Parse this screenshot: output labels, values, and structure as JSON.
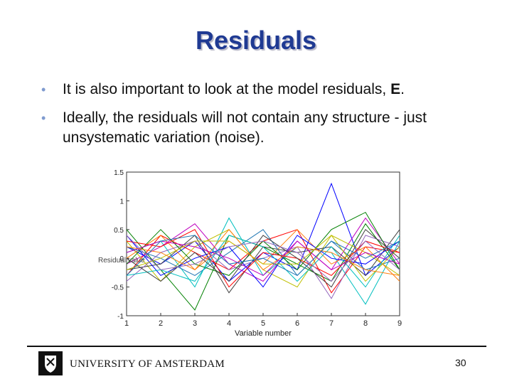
{
  "slide": {
    "title": "Residuals",
    "bullets": [
      {
        "text": "It is also important to look at the model residuals, ",
        "bold": "E",
        "after": "."
      },
      {
        "text": "Ideally, the residuals will not contain any structure - just unsystematic variation (noise).",
        "bold": "",
        "after": ""
      }
    ],
    "footer_left": "UNIVERSITY OF AMSTERDAM",
    "page_number": "30"
  },
  "colors": {
    "title": "#1f3a93",
    "bullet": "#7f9bcf",
    "palette": [
      "#0000ff",
      "#008000",
      "#ff0000",
      "#00bfbf",
      "#bf00bf",
      "#bfbf00",
      "#404040",
      "#ff7f0e",
      "#1f77b4",
      "#9467bd"
    ]
  },
  "chart_data": {
    "type": "line",
    "title": "",
    "xlabel": "Variable number",
    "ylabel": "Residual value",
    "x": [
      1,
      2,
      3,
      4,
      5,
      6,
      7,
      8,
      9
    ],
    "xlim": [
      1,
      9
    ],
    "ylim": [
      -1,
      1.5
    ],
    "xticks": [
      "1",
      "2",
      "3",
      "4",
      "5",
      "6",
      "7",
      "8",
      "9"
    ],
    "yticks": [
      "-1",
      "-0.5",
      "0",
      "0.5",
      "1",
      "1.5"
    ],
    "grid": false,
    "series": [
      {
        "values": [
          0.2,
          -0.1,
          0.3,
          -0.4,
          0.1,
          -0.2,
          1.3,
          -0.3,
          0.2
        ]
      },
      {
        "values": [
          0.5,
          -0.2,
          -0.9,
          0.4,
          0.2,
          -0.1,
          -0.4,
          0.6,
          -0.2
        ]
      },
      {
        "values": [
          -0.3,
          0.4,
          0.1,
          -0.2,
          0.3,
          0.5,
          -0.6,
          0.2,
          0.1
        ]
      },
      {
        "values": [
          0.1,
          0.3,
          -0.5,
          0.7,
          -0.3,
          0.2,
          0.1,
          -0.8,
          0.3
        ]
      },
      {
        "values": [
          -0.1,
          0.2,
          0.6,
          -0.1,
          -0.4,
          0.3,
          -0.2,
          0.7,
          -0.1
        ]
      },
      {
        "values": [
          0.3,
          -0.4,
          0.2,
          0.5,
          -0.2,
          -0.5,
          0.4,
          0.1,
          -0.3
        ]
      },
      {
        "values": [
          -0.2,
          -0.1,
          0.4,
          -0.6,
          0.2,
          0.1,
          0.2,
          -0.3,
          0.5
        ]
      },
      {
        "values": [
          0.0,
          0.4,
          -0.2,
          0.3,
          -0.1,
          0.5,
          -0.1,
          0.2,
          -0.4
        ]
      },
      {
        "values": [
          0.2,
          0.0,
          -0.3,
          0.1,
          0.5,
          -0.3,
          0.3,
          -0.2,
          0.0
        ]
      },
      {
        "values": [
          -0.4,
          0.1,
          0.3,
          -0.2,
          0.0,
          0.2,
          -0.7,
          0.4,
          0.2
        ]
      },
      {
        "values": [
          0.4,
          -0.3,
          0.0,
          0.2,
          -0.5,
          0.4,
          0.0,
          -0.1,
          0.3
        ]
      },
      {
        "values": [
          -0.1,
          0.5,
          -0.1,
          -0.3,
          0.3,
          -0.2,
          0.5,
          0.8,
          -0.2
        ]
      },
      {
        "values": [
          0.3,
          0.2,
          0.5,
          -0.5,
          0.1,
          0.0,
          -0.3,
          0.3,
          0.1
        ]
      },
      {
        "values": [
          -0.3,
          -0.2,
          -0.4,
          0.4,
          0.2,
          -0.4,
          0.2,
          -0.5,
          0.4
        ]
      },
      {
        "values": [
          0.1,
          0.3,
          0.2,
          0.0,
          -0.3,
          0.3,
          -0.2,
          0.1,
          -0.1
        ]
      },
      {
        "values": [
          -0.2,
          0.0,
          0.3,
          0.3,
          -0.1,
          -0.1,
          0.4,
          -0.4,
          0.2
        ]
      },
      {
        "values": [
          0.0,
          -0.4,
          0.1,
          -0.4,
          0.4,
          0.0,
          -0.5,
          0.5,
          0.0
        ]
      },
      {
        "values": [
          0.2,
          0.1,
          -0.2,
          0.5,
          -0.2,
          0.2,
          0.1,
          -0.2,
          -0.3
        ]
      },
      {
        "values": [
          -0.3,
          0.3,
          0.4,
          -0.1,
          0.0,
          -0.3,
          0.3,
          0.0,
          0.3
        ]
      },
      {
        "values": [
          0.4,
          -0.2,
          -0.1,
          0.2,
          0.3,
          0.1,
          -0.4,
          0.3,
          -0.2
        ]
      }
    ]
  }
}
